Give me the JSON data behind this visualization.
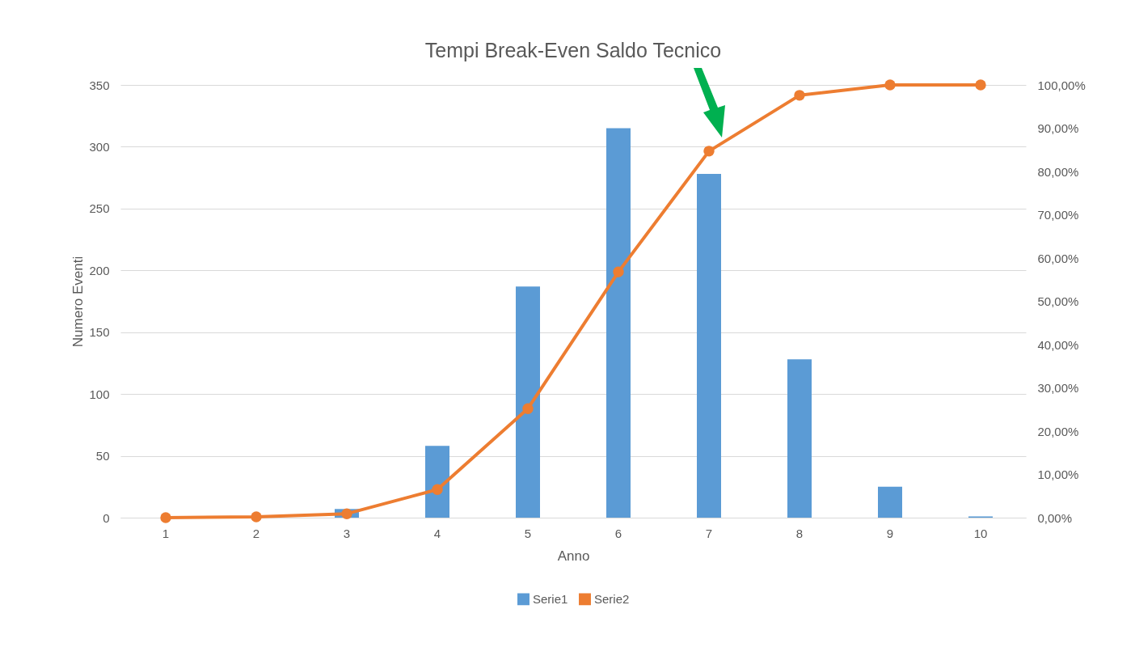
{
  "chart_data": {
    "type": "bar",
    "title": "Tempi Break-Even Saldo Tecnico",
    "xlabel": "Anno",
    "ylabel": "Numero Eventi",
    "categories": [
      "1",
      "2",
      "3",
      "4",
      "5",
      "6",
      "7",
      "8",
      "9",
      "10"
    ],
    "series": [
      {
        "name": "Serie1",
        "color": "#5b9bd5",
        "values": [
          0,
          0,
          7,
          58,
          187,
          315,
          278,
          128,
          25,
          1
        ]
      },
      {
        "name": "Serie2",
        "type": "line",
        "axis": "y2",
        "color": "#ed7d31",
        "values": [
          0,
          0.2,
          0.9,
          6.5,
          25.2,
          56.8,
          84.7,
          97.6,
          100,
          100
        ]
      }
    ],
    "ylim": [
      0,
      350
    ],
    "yticks": [
      0,
      50,
      100,
      150,
      200,
      250,
      300,
      350
    ],
    "y2lim": [
      0,
      100
    ],
    "y2ticks": [
      {
        "value": 0,
        "label": "0,00%"
      },
      {
        "value": 10,
        "label": "10,00%"
      },
      {
        "value": 20,
        "label": "20,00%"
      },
      {
        "value": 30,
        "label": "30,00%"
      },
      {
        "value": 40,
        "label": "40,00%"
      },
      {
        "value": 50,
        "label": "50,00%"
      },
      {
        "value": 60,
        "label": "60,00%"
      },
      {
        "value": 70,
        "label": "70,00%"
      },
      {
        "value": 80,
        "label": "80,00%"
      },
      {
        "value": 90,
        "label": "90,00%"
      },
      {
        "value": 100,
        "label": "100,00%"
      }
    ],
    "grid": "y",
    "legend": "bottom",
    "marker": "circle"
  }
}
